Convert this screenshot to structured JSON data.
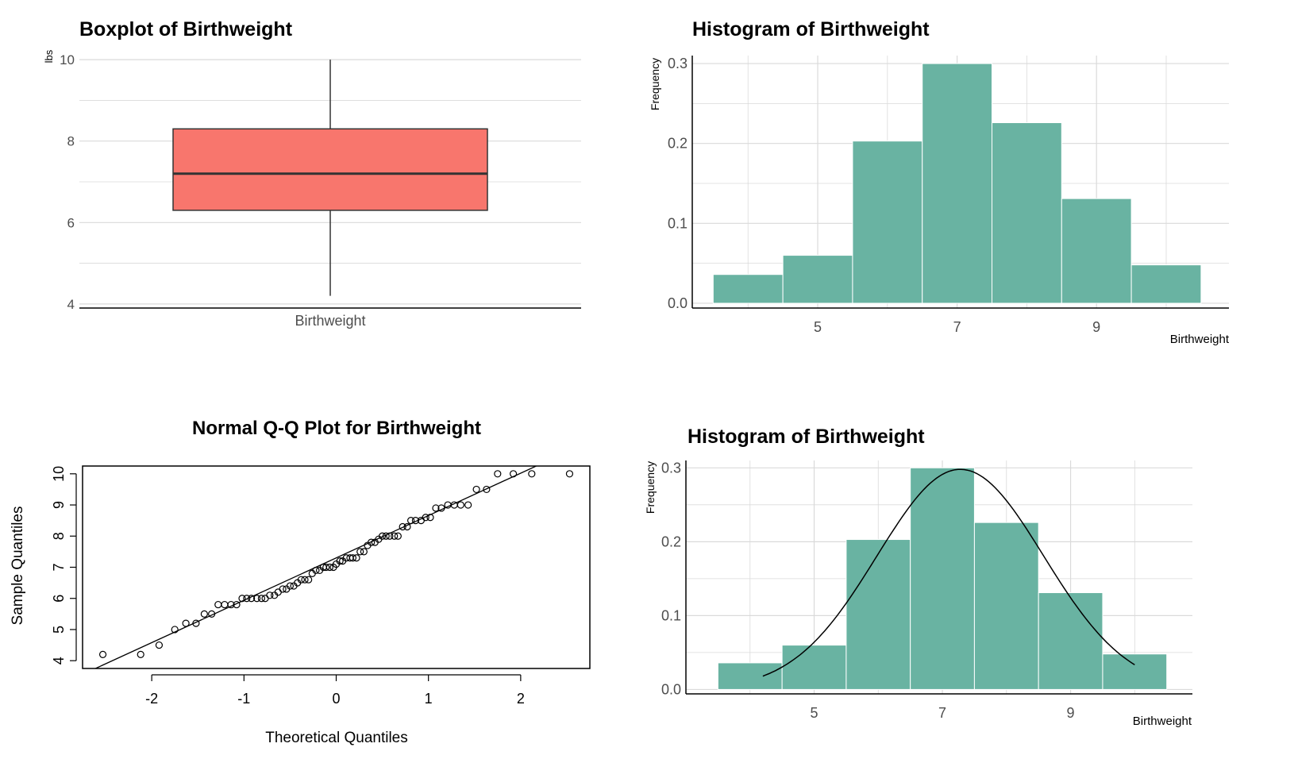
{
  "colors": {
    "box_fill": "#F8766D",
    "bar_fill": "#69B3A2",
    "grid": "#DADADA",
    "axis": "#000000",
    "tick_text": "#4D4D4D"
  },
  "chart_data": [
    {
      "type": "boxplot",
      "title": "Boxplot of Birthweight",
      "xlabel": "",
      "ylabel": "lbs",
      "category": "Birthweight",
      "ylim": [
        3.9,
        10.1
      ],
      "yticks": [
        4,
        6,
        8,
        10
      ],
      "stats": {
        "min": 4.2,
        "q1": 6.3,
        "median": 7.2,
        "q3": 8.3,
        "max": 10.0
      },
      "grid": true
    },
    {
      "type": "bar",
      "title": "Histogram of Birthweight",
      "xlabel": "Birthweight",
      "ylabel": "Frequency",
      "bins": [
        [
          3.5,
          4.5
        ],
        [
          4.5,
          5.5
        ],
        [
          5.5,
          6.5
        ],
        [
          6.5,
          7.5
        ],
        [
          7.5,
          8.5
        ],
        [
          8.5,
          9.5
        ],
        [
          9.5,
          10.5
        ]
      ],
      "values": [
        0.036,
        0.06,
        0.203,
        0.3,
        0.226,
        0.131,
        0.048
      ],
      "xlim": [
        3.2,
        10.9
      ],
      "ylim": [
        -0.006,
        0.31
      ],
      "xticks": [
        5,
        7,
        9
      ],
      "yticks": [
        "0.0",
        "0.1",
        "0.2",
        "0.3"
      ],
      "grid": true
    },
    {
      "type": "scatter",
      "title": "Normal Q-Q Plot for Birthweight",
      "xlabel": "Theoretical Quantiles",
      "ylabel": "Sample Quantiles",
      "xlim": [
        -2.75,
        2.75
      ],
      "ylim": [
        3.75,
        10.25
      ],
      "xticks": [
        -2,
        -1,
        0,
        1,
        2
      ],
      "yticks": [
        4,
        5,
        6,
        7,
        8,
        9,
        10
      ],
      "line": {
        "intercept": 7.3,
        "slope": 1.36
      },
      "points": [
        [
          -2.53,
          4.2
        ],
        [
          -2.12,
          4.2
        ],
        [
          -1.92,
          4.5
        ],
        [
          -1.75,
          5.0
        ],
        [
          -1.63,
          5.2
        ],
        [
          -1.52,
          5.2
        ],
        [
          -1.43,
          5.5
        ],
        [
          -1.35,
          5.5
        ],
        [
          -1.28,
          5.8
        ],
        [
          -1.21,
          5.8
        ],
        [
          -1.14,
          5.8
        ],
        [
          -1.08,
          5.8
        ],
        [
          -1.02,
          6.0
        ],
        [
          -0.97,
          6.0
        ],
        [
          -0.92,
          6.0
        ],
        [
          -0.86,
          6.0
        ],
        [
          -0.81,
          6.0
        ],
        [
          -0.77,
          6.0
        ],
        [
          -0.72,
          6.1
        ],
        [
          -0.67,
          6.1
        ],
        [
          -0.63,
          6.2
        ],
        [
          -0.58,
          6.3
        ],
        [
          -0.54,
          6.3
        ],
        [
          -0.5,
          6.4
        ],
        [
          -0.46,
          6.4
        ],
        [
          -0.42,
          6.5
        ],
        [
          -0.38,
          6.6
        ],
        [
          -0.34,
          6.6
        ],
        [
          -0.3,
          6.6
        ],
        [
          -0.26,
          6.8
        ],
        [
          -0.22,
          6.9
        ],
        [
          -0.18,
          6.9
        ],
        [
          -0.14,
          7.0
        ],
        [
          -0.11,
          7.0
        ],
        [
          -0.07,
          7.0
        ],
        [
          -0.03,
          7.0
        ],
        [
          0.0,
          7.1
        ],
        [
          0.04,
          7.2
        ],
        [
          0.07,
          7.2
        ],
        [
          0.11,
          7.3
        ],
        [
          0.15,
          7.3
        ],
        [
          0.18,
          7.3
        ],
        [
          0.22,
          7.3
        ],
        [
          0.26,
          7.5
        ],
        [
          0.3,
          7.5
        ],
        [
          0.34,
          7.7
        ],
        [
          0.38,
          7.8
        ],
        [
          0.42,
          7.8
        ],
        [
          0.46,
          7.9
        ],
        [
          0.5,
          8.0
        ],
        [
          0.54,
          8.0
        ],
        [
          0.58,
          8.0
        ],
        [
          0.63,
          8.0
        ],
        [
          0.67,
          8.0
        ],
        [
          0.72,
          8.3
        ],
        [
          0.77,
          8.3
        ],
        [
          0.81,
          8.5
        ],
        [
          0.86,
          8.5
        ],
        [
          0.92,
          8.5
        ],
        [
          0.97,
          8.6
        ],
        [
          1.02,
          8.6
        ],
        [
          1.08,
          8.9
        ],
        [
          1.14,
          8.9
        ],
        [
          1.21,
          9.0
        ],
        [
          1.28,
          9.0
        ],
        [
          1.35,
          9.0
        ],
        [
          1.43,
          9.0
        ],
        [
          1.52,
          9.5
        ],
        [
          1.63,
          9.5
        ],
        [
          1.75,
          10.0
        ],
        [
          1.92,
          10.0
        ],
        [
          2.12,
          10.0
        ],
        [
          2.53,
          10.0
        ]
      ]
    },
    {
      "type": "bar",
      "title": "Histogram of Birthweight",
      "xlabel": "Birthweight",
      "ylabel": "Frequency",
      "bins": [
        [
          3.5,
          4.5
        ],
        [
          4.5,
          5.5
        ],
        [
          5.5,
          6.5
        ],
        [
          6.5,
          7.5
        ],
        [
          7.5,
          8.5
        ],
        [
          8.5,
          9.5
        ],
        [
          9.5,
          10.5
        ]
      ],
      "values": [
        0.036,
        0.06,
        0.203,
        0.3,
        0.226,
        0.131,
        0.048
      ],
      "xlim": [
        3.0,
        10.9
      ],
      "ylim": [
        -0.006,
        0.31
      ],
      "xticks": [
        5,
        7,
        9
      ],
      "yticks": [
        "0.0",
        "0.1",
        "0.2",
        "0.3"
      ],
      "grid": true,
      "density_curve": {
        "mean": 7.28,
        "sd": 1.3,
        "peak": 0.298,
        "from": 4.2,
        "to": 10.0
      }
    }
  ]
}
